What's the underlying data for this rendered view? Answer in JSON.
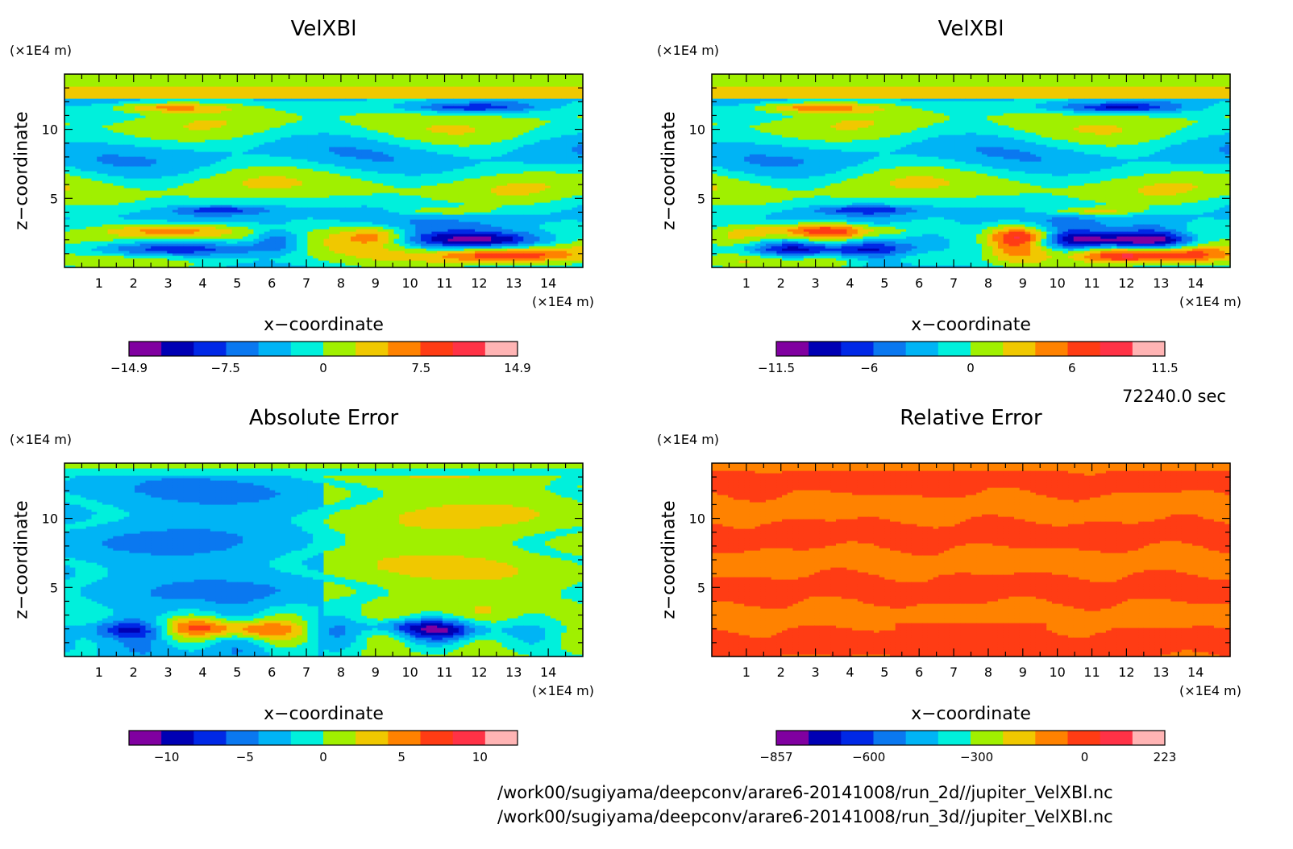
{
  "time_label": "72240.0 sec",
  "file_lines": [
    "/work00/sugiyama/deepconv/arare6-20141008/run_2d//jupiter_VelXBl.nc",
    "/work00/sugiyama/deepconv/arare6-20141008/run_3d//jupiter_VelXBl.nc"
  ],
  "palette": [
    "#8000a0",
    "#0000b4",
    "#0028e6",
    "#0a78f0",
    "#00b4f5",
    "#00f0dc",
    "#a0f000",
    "#f0c800",
    "#ff8200",
    "#ff3c14",
    "#ff3246",
    "#ffb4b4"
  ],
  "chart_data": [
    {
      "type": "heatmap",
      "title": "VelXBl",
      "xlabel": "x−coordinate",
      "ylabel": "z−coordinate",
      "x_unit": "(×1E4 m)",
      "y_unit": "(×1E4 m)",
      "xlim": [
        0,
        15
      ],
      "ylim": [
        0,
        14
      ],
      "x_ticks": [
        1,
        2,
        3,
        4,
        5,
        6,
        7,
        8,
        9,
        10,
        11,
        12,
        13,
        14
      ],
      "y_ticks": [
        5,
        10
      ],
      "colorbar": {
        "ticks": [
          -14.9,
          -7.5,
          0,
          7.5,
          14.9
        ],
        "tick_labels": [
          "−14.9",
          "−7.5",
          "0",
          "7.5",
          "14.9"
        ],
        "range": [
          -14.9,
          14.9
        ]
      }
    },
    {
      "type": "heatmap",
      "title": "VelXBl",
      "xlabel": "x−coordinate",
      "ylabel": "z−coordinate",
      "x_unit": "(×1E4 m)",
      "y_unit": "(×1E4 m)",
      "xlim": [
        0,
        15
      ],
      "ylim": [
        0,
        14
      ],
      "x_ticks": [
        1,
        2,
        3,
        4,
        5,
        6,
        7,
        8,
        9,
        10,
        11,
        12,
        13,
        14
      ],
      "y_ticks": [
        5,
        10
      ],
      "colorbar": {
        "ticks": [
          -11.5,
          -6,
          0,
          6,
          11.5
        ],
        "tick_labels": [
          "−11.5",
          "−6",
          "0",
          "6",
          "11.5"
        ],
        "range": [
          -11.5,
          11.5
        ]
      }
    },
    {
      "type": "heatmap",
      "title": "Absolute Error",
      "xlabel": "x−coordinate",
      "ylabel": "z−coordinate",
      "x_unit": "(×1E4 m)",
      "y_unit": "(×1E4 m)",
      "xlim": [
        0,
        15
      ],
      "ylim": [
        0,
        14
      ],
      "x_ticks": [
        1,
        2,
        3,
        4,
        5,
        6,
        7,
        8,
        9,
        10,
        11,
        12,
        13,
        14
      ],
      "y_ticks": [
        5,
        10
      ],
      "colorbar": {
        "ticks": [
          -10,
          -5,
          0,
          5,
          10
        ],
        "tick_labels": [
          "−10",
          "−5",
          "0",
          "5",
          "10"
        ],
        "range": [
          -12.4,
          12.4
        ]
      }
    },
    {
      "type": "heatmap",
      "title": "Relative Error",
      "xlabel": "x−coordinate",
      "ylabel": "z−coordinate",
      "x_unit": "(×1E4 m)",
      "y_unit": "(×1E4 m)",
      "xlim": [
        0,
        15
      ],
      "ylim": [
        0,
        14
      ],
      "x_ticks": [
        1,
        2,
        3,
        4,
        5,
        6,
        7,
        8,
        9,
        10,
        11,
        12,
        13,
        14
      ],
      "y_ticks": [
        5,
        10
      ],
      "colorbar": {
        "ticks": [
          -857,
          -600,
          -300,
          0,
          223
        ],
        "tick_labels": [
          "−857",
          "−600",
          "−300",
          "0",
          "223"
        ],
        "range": [
          -857,
          223
        ]
      }
    }
  ]
}
